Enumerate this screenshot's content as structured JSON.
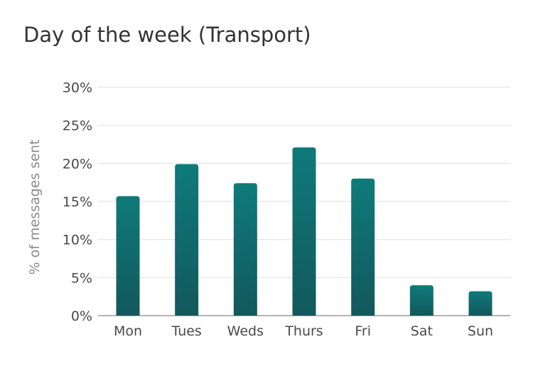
{
  "chart_data": {
    "type": "bar",
    "title": "Day of the week (Transport)",
    "xlabel": "",
    "ylabel": "% of messages sent",
    "categories": [
      "Mon",
      "Tues",
      "Weds",
      "Thurs",
      "Fri",
      "Sat",
      "Sun"
    ],
    "values": [
      15.7,
      19.9,
      17.4,
      22.1,
      18.0,
      4.0,
      3.2
    ],
    "ylim": [
      0,
      30
    ],
    "yticks": [
      {
        "value": 0,
        "label": "0%"
      },
      {
        "value": 5,
        "label": "5%"
      },
      {
        "value": 10,
        "label": "10%"
      },
      {
        "value": 15,
        "label": "15%"
      },
      {
        "value": 20,
        "label": "20%"
      },
      {
        "value": 25,
        "label": "25%"
      },
      {
        "value": 30,
        "label": "30%"
      }
    ],
    "grid": true,
    "legend": "none",
    "colors": {
      "bar_top": "#0f7a7a",
      "bar_bottom": "#12585d",
      "grid": "#e3e3e3",
      "axis": "#9a9a9a"
    }
  }
}
